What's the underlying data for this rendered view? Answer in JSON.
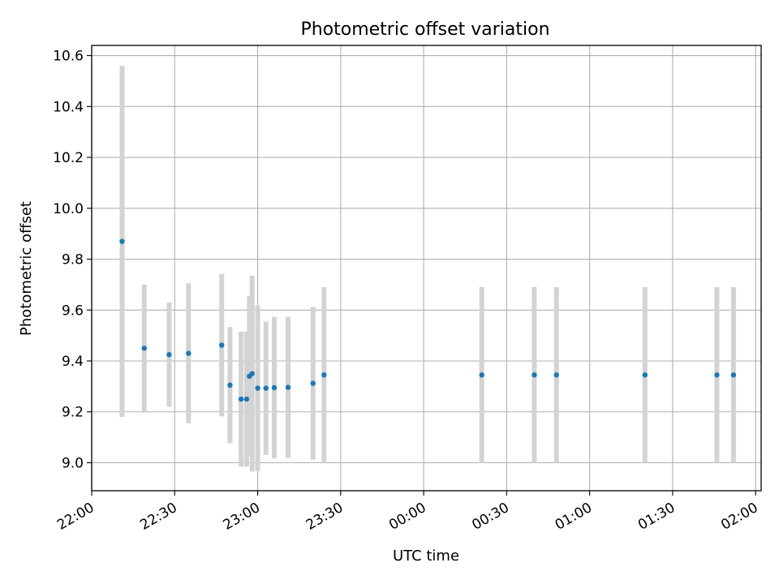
{
  "chart_data": {
    "type": "scatter",
    "title": "Photometric offset variation",
    "xlabel": "UTC time",
    "ylabel": "Photometric offset",
    "grid": true,
    "legend": "none",
    "xlim": [
      "22:00",
      "02:02"
    ],
    "ylim": [
      8.89,
      10.64
    ],
    "x_ticks": [
      "22:00",
      "22:30",
      "23:00",
      "23:30",
      "00:00",
      "00:30",
      "01:00",
      "01:30",
      "02:00"
    ],
    "y_ticks": [
      9.0,
      9.2,
      9.4,
      9.6,
      9.8,
      10.0,
      10.2,
      10.4,
      10.6
    ],
    "colors": {
      "point": "#1f77b4",
      "errorbar": "#d3d3d3",
      "grid": "#b0b0b0"
    },
    "series": [
      {
        "points": [
          {
            "x": "22:11",
            "y": 9.87,
            "err": 0.69
          },
          {
            "x": "22:19",
            "y": 9.45,
            "err": 0.25
          },
          {
            "x": "22:28",
            "y": 9.425,
            "err": 0.205
          },
          {
            "x": "22:35",
            "y": 9.43,
            "err": 0.275
          },
          {
            "x": "22:47",
            "y": 9.462,
            "err": 0.28
          },
          {
            "x": "22:50",
            "y": 9.305,
            "err": 0.228
          },
          {
            "x": "22:54",
            "y": 9.25,
            "err": 0.265
          },
          {
            "x": "22:56",
            "y": 9.25,
            "err": 0.265
          },
          {
            "x": "22:57",
            "y": 9.34,
            "err": 0.315
          },
          {
            "x": "22:58",
            "y": 9.35,
            "err": 0.385
          },
          {
            "x": "23:00",
            "y": 9.293,
            "err": 0.325
          },
          {
            "x": "23:03",
            "y": 9.293,
            "err": 0.262
          },
          {
            "x": "23:06",
            "y": 9.295,
            "err": 0.278
          },
          {
            "x": "23:11",
            "y": 9.296,
            "err": 0.277
          },
          {
            "x": "23:20",
            "y": 9.312,
            "err": 0.3
          },
          {
            "x": "23:24",
            "y": 9.345,
            "err": 0.345
          },
          {
            "x": "00:21",
            "y": 9.345,
            "err": 0.345
          },
          {
            "x": "00:40",
            "y": 9.345,
            "err": 0.345
          },
          {
            "x": "00:48",
            "y": 9.345,
            "err": 0.345
          },
          {
            "x": "01:20",
            "y": 9.345,
            "err": 0.345
          },
          {
            "x": "01:46",
            "y": 9.345,
            "err": 0.345
          },
          {
            "x": "01:52",
            "y": 9.345,
            "err": 0.345
          }
        ]
      }
    ]
  }
}
